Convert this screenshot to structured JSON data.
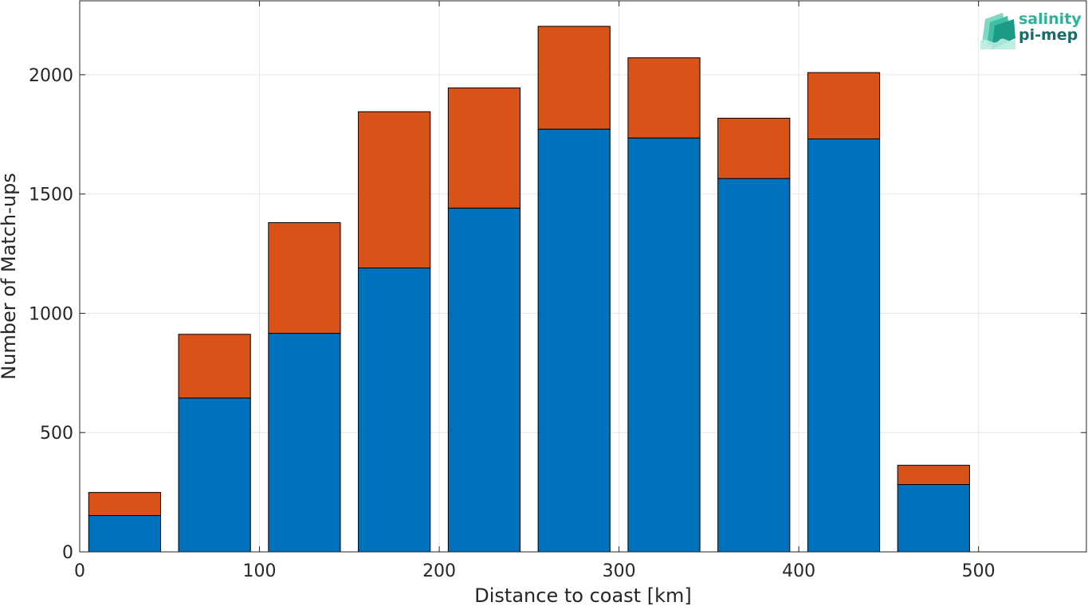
{
  "chart_data": {
    "type": "bar",
    "stacked": true,
    "x": [
      25,
      75,
      125,
      175,
      225,
      275,
      325,
      375,
      425,
      475,
      525
    ],
    "series": [
      {
        "color": "#0072BD",
        "values": [
          152,
          645,
          916,
          1190,
          1441,
          1772,
          1735,
          1565,
          1731,
          282,
          0
        ]
      },
      {
        "color": "#D95319",
        "values": [
          97,
          267,
          464,
          655,
          504,
          431,
          336,
          253,
          278,
          81,
          0
        ]
      }
    ],
    "xlabel": "Distance to coast [km]",
    "ylabel": "Number of Match-ups",
    "xlim": [
      0,
      560
    ],
    "ylim": [
      0,
      2310
    ],
    "xticks": [
      0,
      100,
      200,
      300,
      400,
      500
    ],
    "yticks": [
      0,
      500,
      1000,
      1500,
      2000
    ],
    "grid": true
  },
  "logo": {
    "line1": "salinity",
    "line2": "pi-mep"
  }
}
